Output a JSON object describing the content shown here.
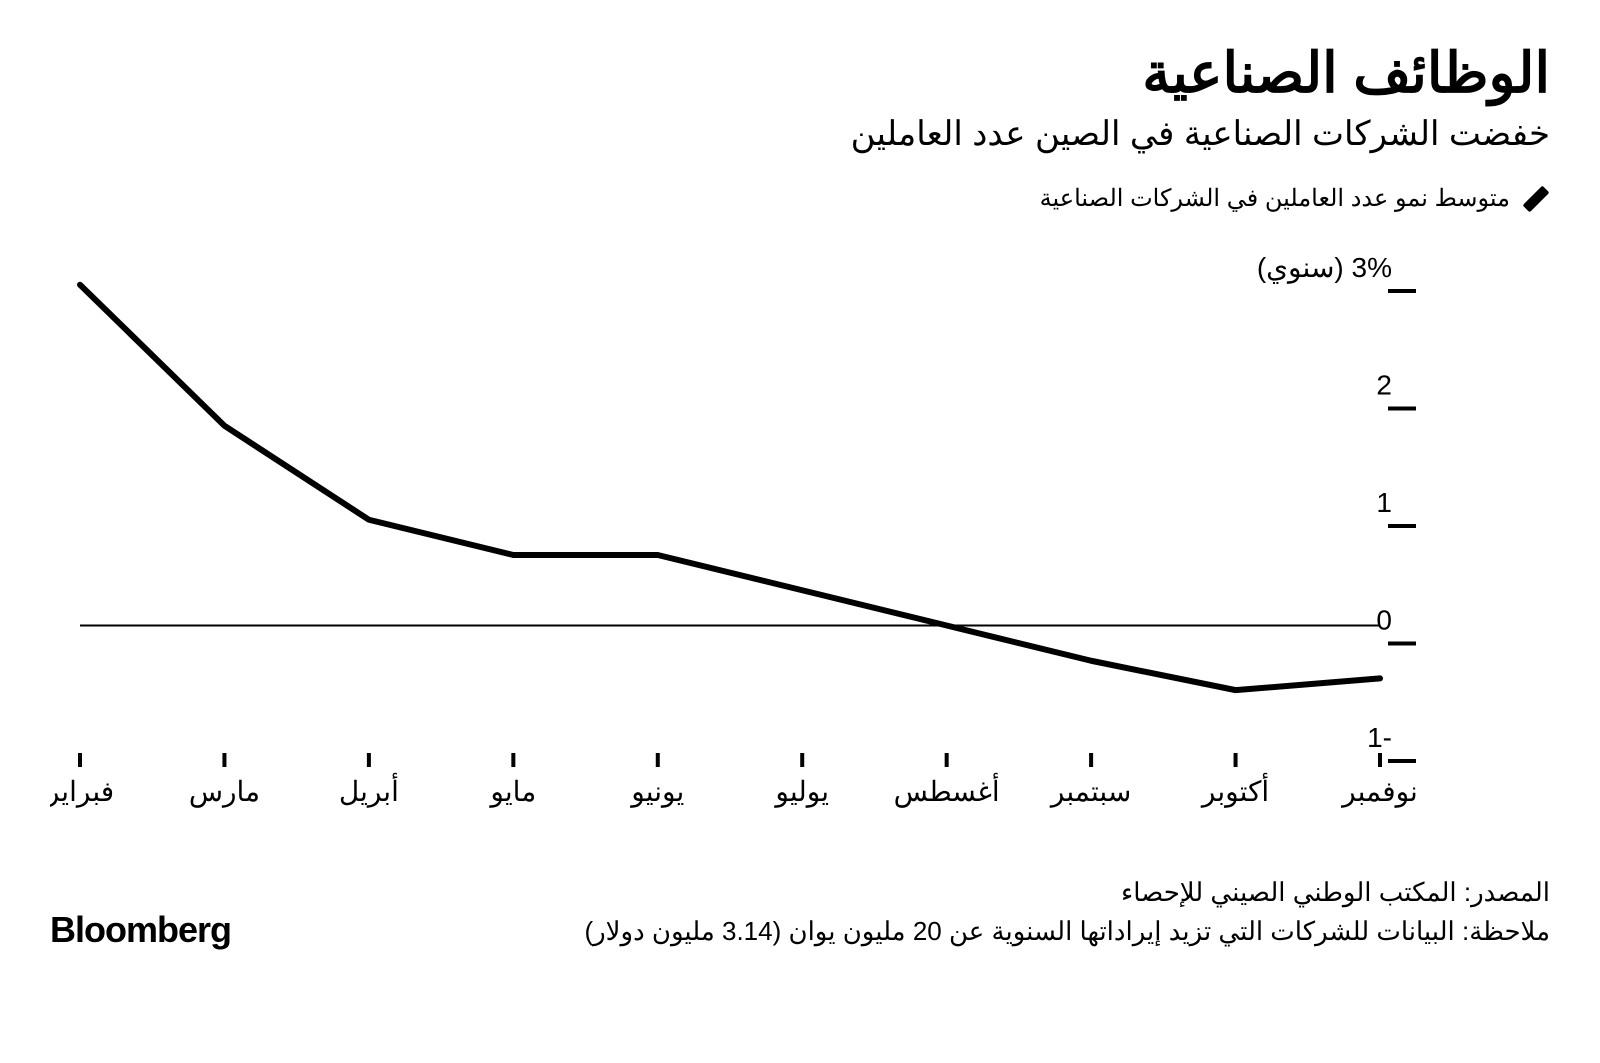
{
  "header": {
    "title": "الوظائف الصناعية",
    "subtitle": "خفضت الشركات الصناعية في الصين عدد العاملين"
  },
  "legend": {
    "label": "متوسط نمو عدد العاملين في الشركات الصناعية",
    "swatch_color": "#000000"
  },
  "chart": {
    "type": "line",
    "x_labels": [
      "فبراير",
      "مارس",
      "أبريل",
      "مايو",
      "يونيو",
      "يوليو",
      "أغسطس",
      "سبتمبر",
      "أكتوبر",
      "نوفمبر"
    ],
    "y_values": [
      2.9,
      1.7,
      0.9,
      0.6,
      0.6,
      0.3,
      0.0,
      -0.3,
      -0.55,
      -0.45
    ],
    "y_axis": {
      "unit_label": "3% (سنوي)",
      "ticks": [
        3,
        2,
        1,
        0,
        -1
      ],
      "tick_labels": [
        "3% (سنوي)",
        "2",
        "1",
        "0",
        "-1"
      ]
    },
    "ylim": [
      -1,
      3
    ],
    "line_color": "#000000",
    "line_width": 6,
    "axis_color": "#000000",
    "tick_color": "#000000",
    "tick_length": 14,
    "zero_line_width": 2,
    "background_color": "#ffffff",
    "label_fontsize": 28,
    "y_label_fontsize": 28
  },
  "footer": {
    "source": "المصدر: المكتب الوطني الصيني للإحصاء",
    "note": "ملاحظة: البيانات للشركات التي تزيد إيراداتها السنوية عن 20 مليون يوان (3.14 مليون دولار)",
    "brand": "Bloomberg"
  }
}
